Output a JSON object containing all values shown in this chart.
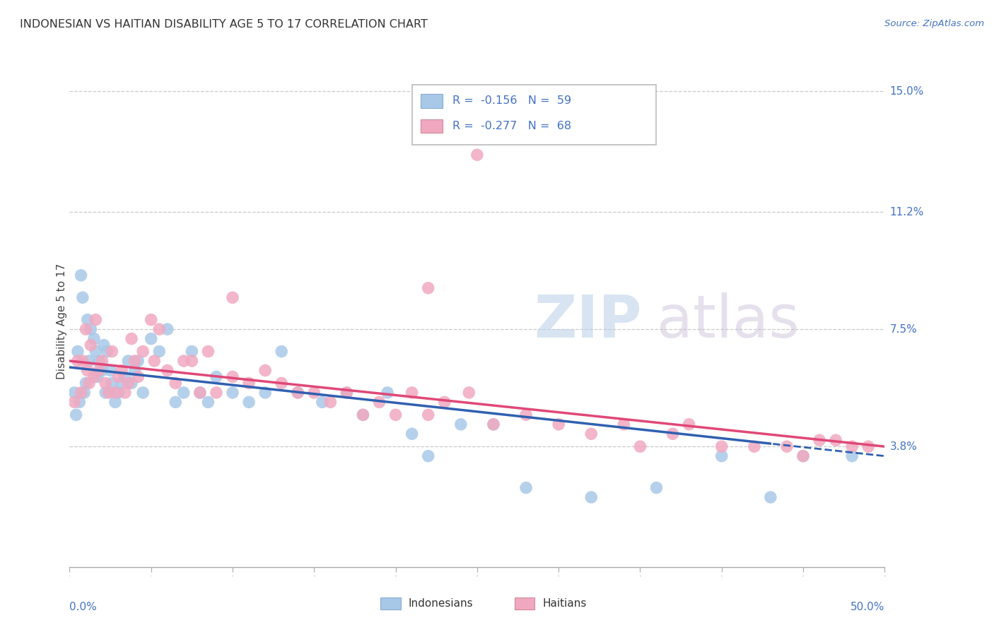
{
  "title": "INDONESIAN VS HAITIAN DISABILITY AGE 5 TO 17 CORRELATION CHART",
  "source": "Source: ZipAtlas.com",
  "ylabel": "Disability Age 5 to 17",
  "xmin": 0.0,
  "xmax": 50.0,
  "ymin": 0.0,
  "ymax": 15.5,
  "yticks": [
    3.8,
    7.5,
    11.2,
    15.0
  ],
  "ytick_labels": [
    "3.8%",
    "7.5%",
    "11.2%",
    "15.0%"
  ],
  "background_color": "#ffffff",
  "grid_color": "#c8c8c8",
  "indonesian_color": "#a8c8e8",
  "haitian_color": "#f0a8c0",
  "indonesian_line_color": "#3060b0",
  "haitian_line_color": "#e04878",
  "R_indonesian": -0.156,
  "N_indonesian": 59,
  "R_haitian": -0.277,
  "N_haitian": 68,
  "ind_x": [
    0.3,
    0.4,
    0.5,
    0.6,
    0.7,
    0.8,
    0.9,
    1.0,
    1.1,
    1.2,
    1.3,
    1.5,
    1.6,
    1.7,
    1.8,
    2.0,
    2.1,
    2.2,
    2.3,
    2.5,
    2.6,
    2.8,
    3.0,
    3.2,
    3.4,
    3.6,
    3.8,
    4.0,
    4.2,
    4.5,
    5.0,
    5.5,
    6.0,
    6.5,
    7.0,
    7.5,
    8.0,
    8.5,
    9.0,
    10.0,
    11.0,
    12.0,
    13.0,
    14.0,
    15.5,
    17.0,
    18.0,
    19.5,
    21.0,
    22.0,
    24.0,
    26.0,
    28.0,
    32.0,
    36.0,
    40.0,
    43.0,
    45.0,
    48.0
  ],
  "ind_y": [
    5.5,
    4.8,
    6.8,
    5.2,
    9.2,
    8.5,
    5.5,
    5.8,
    7.8,
    6.5,
    7.5,
    7.2,
    6.8,
    6.0,
    6.5,
    6.2,
    7.0,
    5.5,
    6.8,
    6.2,
    5.8,
    5.2,
    5.5,
    5.8,
    6.0,
    6.5,
    5.8,
    6.2,
    6.5,
    5.5,
    7.2,
    6.8,
    7.5,
    5.2,
    5.5,
    6.8,
    5.5,
    5.2,
    6.0,
    5.5,
    5.2,
    5.5,
    6.8,
    5.5,
    5.2,
    5.5,
    4.8,
    5.5,
    4.2,
    3.5,
    4.5,
    4.5,
    2.5,
    2.2,
    2.5,
    3.5,
    2.2,
    3.5,
    3.5
  ],
  "hai_x": [
    0.3,
    0.5,
    0.7,
    0.8,
    1.0,
    1.1,
    1.2,
    1.3,
    1.5,
    1.6,
    1.8,
    2.0,
    2.2,
    2.4,
    2.6,
    2.8,
    3.0,
    3.2,
    3.4,
    3.6,
    3.8,
    4.0,
    4.2,
    4.5,
    5.0,
    5.2,
    5.5,
    6.0,
    6.5,
    7.0,
    7.5,
    8.0,
    8.5,
    9.0,
    10.0,
    11.0,
    12.0,
    13.0,
    14.0,
    15.0,
    16.0,
    17.0,
    18.0,
    19.0,
    20.0,
    21.0,
    22.0,
    23.0,
    24.5,
    26.0,
    28.0,
    30.0,
    32.0,
    34.0,
    35.0,
    37.0,
    38.0,
    40.0,
    42.0,
    44.0,
    45.0,
    46.0,
    47.0,
    48.0,
    49.0,
    25.0,
    22.0,
    10.0
  ],
  "hai_y": [
    5.2,
    6.5,
    5.5,
    6.5,
    7.5,
    6.2,
    5.8,
    7.0,
    6.0,
    7.8,
    6.2,
    6.5,
    5.8,
    5.5,
    6.8,
    5.5,
    6.0,
    6.2,
    5.5,
    5.8,
    7.2,
    6.5,
    6.0,
    6.8,
    7.8,
    6.5,
    7.5,
    6.2,
    5.8,
    6.5,
    6.5,
    5.5,
    6.8,
    5.5,
    6.0,
    5.8,
    6.2,
    5.8,
    5.5,
    5.5,
    5.2,
    5.5,
    4.8,
    5.2,
    4.8,
    5.5,
    4.8,
    5.2,
    5.5,
    4.5,
    4.8,
    4.5,
    4.2,
    4.5,
    3.8,
    4.2,
    4.5,
    3.8,
    3.8,
    3.8,
    3.5,
    4.0,
    4.0,
    3.8,
    3.8,
    13.0,
    8.8,
    8.5
  ]
}
